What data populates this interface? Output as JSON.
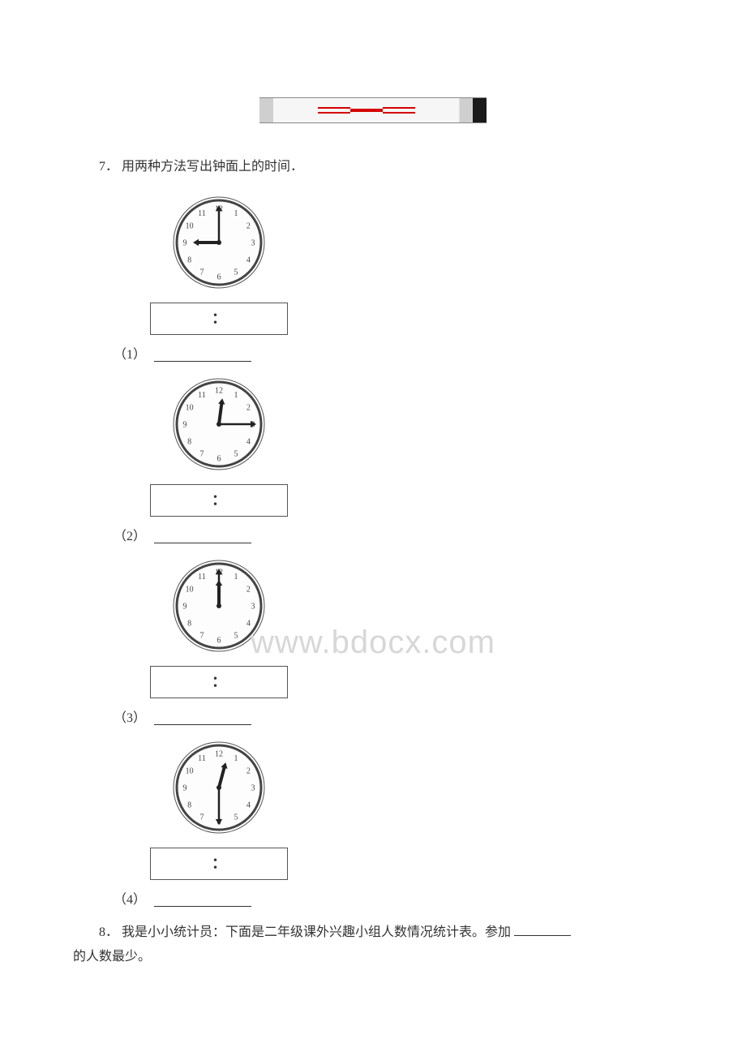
{
  "question7": {
    "number": "7．",
    "text": "用两种方法写出钟面上的时间．",
    "clocks": [
      {
        "label": "（1）",
        "hour": 9,
        "minute": 0,
        "hour_angle": 270,
        "minute_angle": 0
      },
      {
        "label": "（2）",
        "hour": 12,
        "minute": 15,
        "hour_angle": 7.5,
        "minute_angle": 90
      },
      {
        "label": "（3）",
        "hour": 12,
        "minute": 0,
        "hour_angle": 0,
        "minute_angle": 0
      },
      {
        "label": "（4）",
        "hour": 12,
        "minute": 30,
        "hour_angle": 15,
        "minute_angle": 180
      }
    ],
    "colon_placeholder": "：",
    "clock_face": {
      "outer_stroke": "#444",
      "fill": "#fdfdfd",
      "number_color": "#444",
      "hand_color": "#222",
      "numbers": [
        "12",
        "1",
        "2",
        "3",
        "4",
        "5",
        "6",
        "7",
        "8",
        "9",
        "10",
        "11"
      ]
    }
  },
  "question8": {
    "number": "8．",
    "text_a": "我是小小统计员：下面是二年级课外兴趣小组人数情况统计表。参加",
    "text_b": "的人数最少。"
  },
  "watermark": "www.bdocx.com"
}
